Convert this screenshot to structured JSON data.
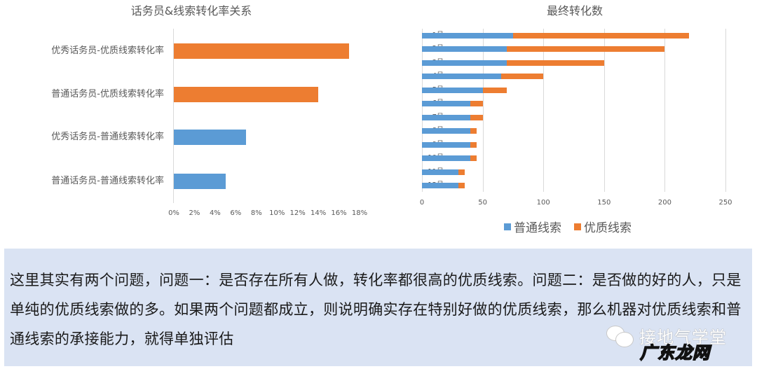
{
  "colors": {
    "normal_lead": "#5b9bd5",
    "quality_lead": "#ed7d31",
    "panel_bg": "#dae3f3",
    "gridline": "#d9d9d9",
    "axis_text": "#595959"
  },
  "chart_data": [
    {
      "type": "bar",
      "orientation": "horizontal",
      "title": "话务员&线索转化率关系",
      "categories": [
        "优秀话务员-优质线索转化率",
        "普通话务员-优质线索转化率",
        "优秀话务员-普通线索转化率",
        "普通话务员-普通线索转化率"
      ],
      "values": [
        17,
        14,
        7,
        5
      ],
      "value_unit": "%",
      "bar_colors": [
        "#ed7d31",
        "#ed7d31",
        "#5b9bd5",
        "#5b9bd5"
      ],
      "xlabel": "",
      "ylabel": "",
      "xlim": [
        0,
        18
      ],
      "x_ticks": [
        "0%",
        "2%",
        "4%",
        "6%",
        "8%",
        "10%",
        "12%",
        "14%",
        "16%",
        "18%"
      ],
      "grid": false,
      "legend": null
    },
    {
      "type": "bar",
      "orientation": "horizontal",
      "stacked": true,
      "title": "最终转化数",
      "categories": [
        "1号",
        "2号",
        "3号",
        "4号",
        "5号",
        "6号",
        "7号",
        "8号",
        "9号",
        "10号",
        "11号",
        "12号"
      ],
      "series": [
        {
          "name": "普通线索",
          "color": "#5b9bd5",
          "values": [
            75,
            70,
            70,
            65,
            50,
            40,
            40,
            40,
            40,
            40,
            30,
            30
          ]
        },
        {
          "name": "优质线索",
          "color": "#ed7d31",
          "values": [
            145,
            130,
            80,
            35,
            20,
            10,
            10,
            5,
            5,
            5,
            5,
            5
          ]
        }
      ],
      "xlabel": "",
      "ylabel": "",
      "xlim": [
        0,
        250
      ],
      "x_ticks": [
        "0",
        "50",
        "100",
        "150",
        "200",
        "250"
      ],
      "grid": true,
      "legend": {
        "position": "bottom",
        "entries": [
          "普通线索",
          "优质线索"
        ]
      }
    }
  ],
  "left_chart": {
    "title": "话务员&线索转化率关系",
    "rows": [
      {
        "label": "优秀话务员-优质线索转化率",
        "value": 17,
        "series": "quality"
      },
      {
        "label": "普通话务员-优质线索转化率",
        "value": 14,
        "series": "quality"
      },
      {
        "label": "优秀话务员-普通线索转化率",
        "value": 7,
        "series": "normal"
      },
      {
        "label": "普通话务员-普通线索转化率",
        "value": 5,
        "series": "normal"
      }
    ],
    "ticks": [
      "0%",
      "2%",
      "4%",
      "6%",
      "8%",
      "10%",
      "12%",
      "14%",
      "16%",
      "18%"
    ]
  },
  "right_chart": {
    "title": "最终转化数",
    "rows": [
      {
        "label": "1号",
        "normal": 75,
        "quality": 145
      },
      {
        "label": "2号",
        "normal": 70,
        "quality": 130
      },
      {
        "label": "3号",
        "normal": 70,
        "quality": 80
      },
      {
        "label": "4号",
        "normal": 65,
        "quality": 35
      },
      {
        "label": "5号",
        "normal": 50,
        "quality": 20
      },
      {
        "label": "6号",
        "normal": 40,
        "quality": 10
      },
      {
        "label": "7号",
        "normal": 40,
        "quality": 10
      },
      {
        "label": "8号",
        "normal": 40,
        "quality": 5
      },
      {
        "label": "9号",
        "normal": 40,
        "quality": 5
      },
      {
        "label": "10号",
        "normal": 40,
        "quality": 5
      },
      {
        "label": "11号",
        "normal": 30,
        "quality": 5
      },
      {
        "label": "12号",
        "normal": 30,
        "quality": 5
      }
    ],
    "ticks": [
      "0",
      "50",
      "100",
      "150",
      "200",
      "250"
    ],
    "legend": {
      "normal": "普通线索",
      "quality": "优质线索"
    }
  },
  "panel": {
    "text": "这里其实有两个问题，问题一：是否存在所有人做，转化率都很高的优质线索。问题二：是否做的好的人，只是单纯的优质线索做的多。如果两个问题都成立，则说明确实存在特别好做的优质线索，那么机器对优质线索和普通线索的承接能力，就得单独评估"
  },
  "watermark": {
    "icon": "wechat-icon",
    "account": "接地气学堂",
    "site": "广东龙网"
  }
}
